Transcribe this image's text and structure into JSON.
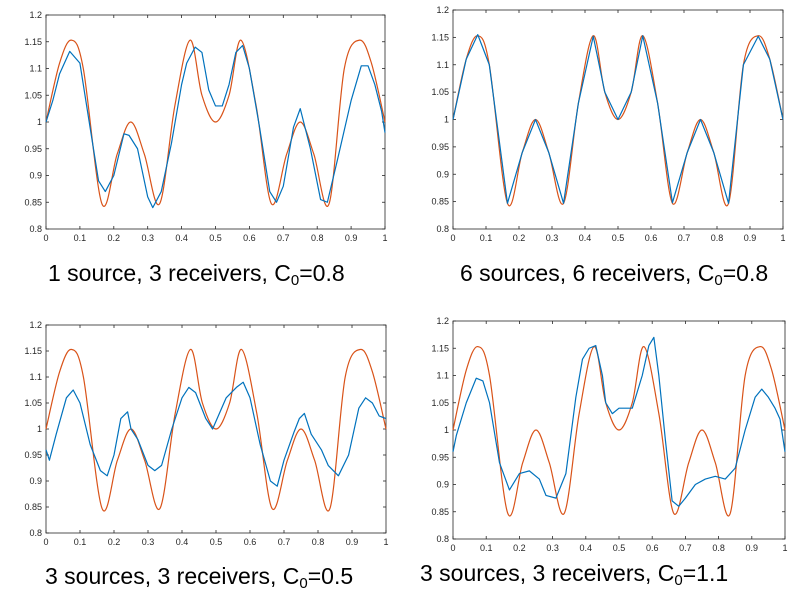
{
  "colors": {
    "reconstruction": "#0072BD",
    "true_profile": "#D95319",
    "axes": "#262626"
  },
  "captions": [
    {
      "text": "1 source, 3 receivers, C",
      "sub": "0",
      "tail": "=0.8"
    },
    {
      "text": "6 sources, 6 receivers, C",
      "sub": "0",
      "tail": "=0.8"
    },
    {
      "text": "3 sources, 3 receivers, C",
      "sub": "0",
      "tail": "=0.5"
    },
    {
      "text": "3 sources, 3 receivers, C",
      "sub": "0",
      "tail": "=1.1"
    }
  ],
  "chart_data": [
    {
      "type": "line",
      "xlim": [
        0,
        1
      ],
      "ylim": [
        0.8,
        1.2
      ],
      "xticks": [
        "0",
        "0.1",
        "0.2",
        "0.3",
        "0.4",
        "0.5",
        "0.6",
        "0.7",
        "0.8",
        "0.9",
        "1"
      ],
      "yticks": [
        "0.8",
        "0.85",
        "0.9",
        "0.95",
        "1",
        "1.05",
        "1.1",
        "1.15",
        "1.2"
      ],
      "series": [
        {
          "color": "#D95319",
          "x": [
            0,
            0.04,
            0.075,
            0.11,
            0.165,
            0.21,
            0.25,
            0.29,
            0.335,
            0.38,
            0.425,
            0.46,
            0.5,
            0.54,
            0.575,
            0.62,
            0.665,
            0.71,
            0.75,
            0.79,
            0.835,
            0.88,
            0.925,
            0.96,
            1
          ],
          "y": [
            1.0,
            1.11,
            1.153,
            1.1,
            0.847,
            0.94,
            1.0,
            0.94,
            0.847,
            1.03,
            1.153,
            1.05,
            1.0,
            1.05,
            1.153,
            1.03,
            0.847,
            0.94,
            1.0,
            0.94,
            0.847,
            1.1,
            1.153,
            1.11,
            1.0
          ]
        },
        {
          "color": "#0072BD",
          "x": [
            0,
            0.02,
            0.04,
            0.07,
            0.1,
            0.13,
            0.155,
            0.175,
            0.2,
            0.23,
            0.245,
            0.27,
            0.3,
            0.315,
            0.34,
            0.37,
            0.4,
            0.415,
            0.44,
            0.46,
            0.48,
            0.5,
            0.52,
            0.54,
            0.56,
            0.58,
            0.6,
            0.63,
            0.66,
            0.68,
            0.7,
            0.73,
            0.75,
            0.78,
            0.81,
            0.83,
            0.86,
            0.9,
            0.93,
            0.95,
            0.97,
            0.99,
            1
          ],
          "y": [
            1.0,
            1.04,
            1.09,
            1.132,
            1.11,
            0.99,
            0.89,
            0.87,
            0.9,
            0.978,
            0.975,
            0.95,
            0.86,
            0.84,
            0.87,
            0.96,
            1.07,
            1.11,
            1.14,
            1.13,
            1.06,
            1.03,
            1.03,
            1.07,
            1.13,
            1.143,
            1.1,
            0.99,
            0.87,
            0.85,
            0.88,
            0.99,
            1.025,
            0.95,
            0.855,
            0.85,
            0.93,
            1.04,
            1.105,
            1.105,
            1.07,
            1.02,
            0.98
          ]
        }
      ]
    },
    {
      "type": "line",
      "xlim": [
        0,
        1
      ],
      "ylim": [
        0.8,
        1.2
      ],
      "xticks": [
        "0",
        "0.1",
        "0.2",
        "0.3",
        "0.4",
        "0.5",
        "0.6",
        "0.7",
        "0.8",
        "0.9",
        "1"
      ],
      "yticks": [
        "0.8",
        "0.85",
        "0.9",
        "0.95",
        "1",
        "1.05",
        "1.1",
        "1.15",
        "1.2"
      ],
      "series": [
        {
          "color": "#D95319",
          "x": [
            0,
            0.04,
            0.075,
            0.11,
            0.165,
            0.21,
            0.25,
            0.29,
            0.335,
            0.38,
            0.425,
            0.46,
            0.5,
            0.54,
            0.575,
            0.62,
            0.665,
            0.71,
            0.75,
            0.79,
            0.835,
            0.88,
            0.925,
            0.96,
            1
          ],
          "y": [
            1.0,
            1.11,
            1.153,
            1.1,
            0.847,
            0.94,
            1.0,
            0.94,
            0.847,
            1.03,
            1.153,
            1.05,
            1.0,
            1.05,
            1.153,
            1.03,
            0.847,
            0.94,
            1.0,
            0.94,
            0.847,
            1.1,
            1.153,
            1.11,
            1.0
          ]
        },
        {
          "color": "#0072BD",
          "x": [
            0,
            0.04,
            0.075,
            0.11,
            0.165,
            0.21,
            0.25,
            0.29,
            0.335,
            0.38,
            0.425,
            0.46,
            0.5,
            0.54,
            0.575,
            0.62,
            0.665,
            0.71,
            0.75,
            0.79,
            0.835,
            0.88,
            0.925,
            0.96,
            1
          ],
          "y": [
            1.0,
            1.11,
            1.155,
            1.1,
            0.847,
            0.94,
            1.0,
            0.94,
            0.847,
            1.03,
            1.152,
            1.05,
            1.0,
            1.05,
            1.153,
            1.03,
            0.848,
            0.94,
            1.0,
            0.94,
            0.847,
            1.1,
            1.152,
            1.11,
            1.0
          ]
        }
      ]
    },
    {
      "type": "line",
      "xlim": [
        0,
        1
      ],
      "ylim": [
        0.8,
        1.2
      ],
      "xticks": [
        "0",
        "0.1",
        "0.2",
        "0.3",
        "0.4",
        "0.5",
        "0.6",
        "0.7",
        "0.8",
        "0.9",
        "1"
      ],
      "yticks": [
        "0.8",
        "0.85",
        "0.9",
        "0.95",
        "1",
        "1.05",
        "1.1",
        "1.15",
        "1.2"
      ],
      "series": [
        {
          "color": "#D95319",
          "x": [
            0,
            0.04,
            0.075,
            0.11,
            0.165,
            0.21,
            0.25,
            0.29,
            0.335,
            0.38,
            0.425,
            0.46,
            0.5,
            0.54,
            0.575,
            0.62,
            0.665,
            0.71,
            0.75,
            0.79,
            0.835,
            0.88,
            0.925,
            0.96,
            1
          ],
          "y": [
            1.0,
            1.11,
            1.153,
            1.1,
            0.847,
            0.94,
            1.0,
            0.94,
            0.847,
            1.03,
            1.153,
            1.05,
            1.0,
            1.05,
            1.153,
            1.03,
            0.847,
            0.94,
            1.0,
            0.94,
            0.847,
            1.1,
            1.153,
            1.11,
            1.0
          ]
        },
        {
          "color": "#0072BD",
          "x": [
            0,
            0.01,
            0.03,
            0.06,
            0.08,
            0.1,
            0.13,
            0.16,
            0.18,
            0.2,
            0.22,
            0.24,
            0.25,
            0.27,
            0.3,
            0.32,
            0.34,
            0.37,
            0.4,
            0.42,
            0.44,
            0.47,
            0.49,
            0.51,
            0.53,
            0.56,
            0.58,
            0.6,
            0.63,
            0.66,
            0.68,
            0.7,
            0.73,
            0.745,
            0.76,
            0.78,
            0.81,
            0.83,
            0.86,
            0.89,
            0.92,
            0.94,
            0.96,
            0.98,
            1
          ],
          "y": [
            0.96,
            0.94,
            0.99,
            1.06,
            1.075,
            1.05,
            0.97,
            0.92,
            0.91,
            0.95,
            1.02,
            1.033,
            1.0,
            0.98,
            0.93,
            0.92,
            0.93,
            1.0,
            1.06,
            1.08,
            1.07,
            1.02,
            1.0,
            1.03,
            1.06,
            1.08,
            1.09,
            1.06,
            0.97,
            0.9,
            0.89,
            0.94,
            0.995,
            1.02,
            1.03,
            0.99,
            0.96,
            0.93,
            0.91,
            0.95,
            1.04,
            1.06,
            1.05,
            1.025,
            1.02
          ]
        }
      ]
    },
    {
      "type": "line",
      "xlim": [
        0,
        1
      ],
      "ylim": [
        0.8,
        1.2
      ],
      "xticks": [
        "0",
        "0.1",
        "0.2",
        "0.3",
        "0.4",
        "0.5",
        "0.6",
        "0.7",
        "0.8",
        "0.9",
        "1"
      ],
      "yticks": [
        "0.8",
        "0.85",
        "0.9",
        "0.95",
        "1",
        "1.05",
        "1.1",
        "1.15",
        "1.2"
      ],
      "series": [
        {
          "color": "#D95319",
          "x": [
            0,
            0.04,
            0.075,
            0.11,
            0.165,
            0.21,
            0.25,
            0.29,
            0.335,
            0.38,
            0.425,
            0.46,
            0.5,
            0.54,
            0.575,
            0.62,
            0.665,
            0.71,
            0.75,
            0.79,
            0.835,
            0.88,
            0.925,
            0.96,
            1
          ],
          "y": [
            1.0,
            1.11,
            1.153,
            1.1,
            0.847,
            0.94,
            1.0,
            0.94,
            0.847,
            1.03,
            1.153,
            1.05,
            1.0,
            1.05,
            1.153,
            1.03,
            0.847,
            0.94,
            1.0,
            0.94,
            0.847,
            1.1,
            1.153,
            1.11,
            1.0
          ]
        },
        {
          "color": "#0072BD",
          "x": [
            0,
            0.01,
            0.04,
            0.07,
            0.09,
            0.11,
            0.14,
            0.17,
            0.2,
            0.23,
            0.26,
            0.28,
            0.31,
            0.34,
            0.37,
            0.39,
            0.41,
            0.43,
            0.45,
            0.46,
            0.48,
            0.5,
            0.52,
            0.54,
            0.57,
            0.59,
            0.605,
            0.62,
            0.64,
            0.66,
            0.68,
            0.7,
            0.73,
            0.76,
            0.79,
            0.82,
            0.85,
            0.88,
            0.91,
            0.93,
            0.95,
            0.97,
            0.985,
            1
          ],
          "y": [
            0.96,
            0.99,
            1.05,
            1.095,
            1.09,
            1.05,
            0.94,
            0.89,
            0.92,
            0.925,
            0.91,
            0.88,
            0.875,
            0.92,
            1.06,
            1.13,
            1.15,
            1.155,
            1.1,
            1.05,
            1.03,
            1.04,
            1.04,
            1.04,
            1.1,
            1.155,
            1.17,
            1.1,
            0.98,
            0.87,
            0.86,
            0.875,
            0.9,
            0.91,
            0.915,
            0.91,
            0.93,
            1.0,
            1.06,
            1.075,
            1.06,
            1.04,
            1.02,
            0.96
          ]
        }
      ]
    }
  ]
}
